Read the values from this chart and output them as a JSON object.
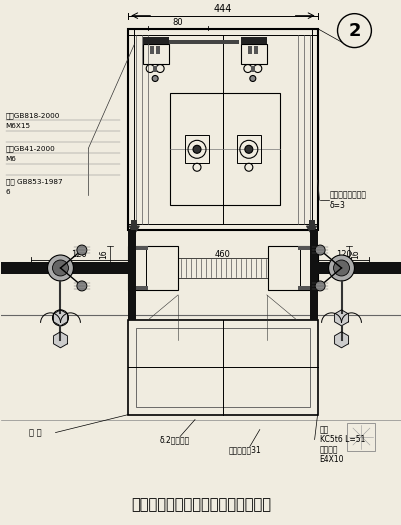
{
  "title": "某点支式玻璃幕墙垂直节点图（二）",
  "bg_color": "#f0ece0",
  "line_color": "#000000",
  "fig_width": 4.02,
  "fig_height": 5.25,
  "dim_top": "444",
  "dim_top2": "80",
  "dim_mid_left": "120",
  "dim_mid_center": "460",
  "dim_mid_right": "120",
  "dim_16_left": "16",
  "dim_16_right": "16",
  "circle_num": "2",
  "ann_left1": "螺栓GB818-2000",
  "ann_left2": "M6X15",
  "ann_left3": "螺栓GB41-2000",
  "ann_left4": "M6",
  "ann_left5": "弹垫 GB853-1987",
  "ann_left6": "6",
  "ann_right": "横向流传管铝扣板",
  "ann_right2": "δ=3",
  "ann_bot_left": "支 座",
  "ann_bot_m1": "δ.2厚鋁件板",
  "ann_bot_m2": "氯丁高密橡31",
  "ann_bot_r1": "角片",
  "ann_bot_r2": "KC5t6 L=51",
  "ann_bot_r3": "油漆螺栓",
  "ann_bot_r4": "E4X10"
}
